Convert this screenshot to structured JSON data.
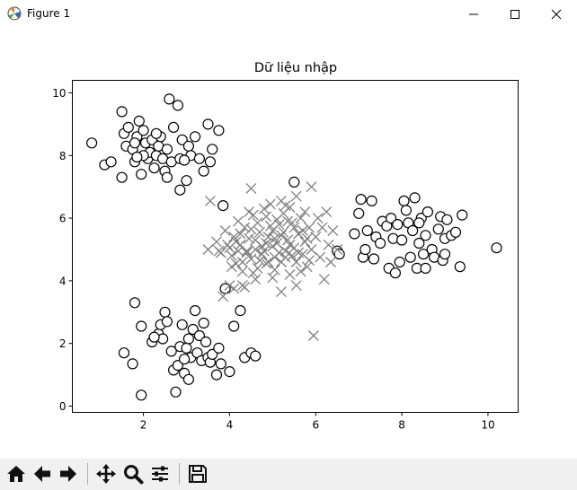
{
  "window": {
    "title": "Figure 1",
    "buttons": [
      "minimize",
      "maximize",
      "close"
    ]
  },
  "toolbar": {
    "buttons": [
      {
        "name": "home-icon",
        "tooltip": "Reset original view"
      },
      {
        "name": "back-icon",
        "tooltip": "Back"
      },
      {
        "name": "forward-icon",
        "tooltip": "Forward"
      },
      {
        "name": "pan-icon",
        "tooltip": "Pan"
      },
      {
        "name": "zoom-icon",
        "tooltip": "Zoom"
      },
      {
        "name": "subplots-icon",
        "tooltip": "Configure subplots"
      },
      {
        "name": "save-icon",
        "tooltip": "Save"
      }
    ]
  },
  "chart_data": {
    "type": "scatter",
    "title": "Dữ liệu nhập",
    "xlabel": "",
    "ylabel": "",
    "xlim": [
      0.35,
      10.7
    ],
    "ylim": [
      -0.2,
      10.4
    ],
    "xticks": [
      2,
      4,
      6,
      8,
      10
    ],
    "yticks": [
      0,
      2,
      4,
      6,
      8,
      10
    ],
    "grid": false,
    "colors": {
      "circle_fill": "#ffffff",
      "circle_edge": "#000000",
      "cross": "#808080"
    },
    "series": [
      {
        "marker": "circle",
        "points": [
          [
            0.8,
            8.4
          ],
          [
            1.1,
            7.7
          ],
          [
            1.25,
            7.8
          ],
          [
            1.5,
            9.4
          ],
          [
            1.5,
            7.3
          ],
          [
            1.55,
            8.7
          ],
          [
            1.6,
            8.3
          ],
          [
            1.65,
            8.9
          ],
          [
            1.75,
            8.2
          ],
          [
            1.8,
            7.8
          ],
          [
            1.85,
            8.6
          ],
          [
            1.9,
            9.1
          ],
          [
            1.95,
            7.4
          ],
          [
            2.0,
            8.8
          ],
          [
            2.05,
            8.4
          ],
          [
            2.1,
            7.9
          ],
          [
            2.15,
            8.1
          ],
          [
            2.2,
            8.5
          ],
          [
            2.25,
            7.6
          ],
          [
            2.3,
            8.0
          ],
          [
            2.35,
            8.3
          ],
          [
            2.4,
            8.6
          ],
          [
            2.45,
            7.9
          ],
          [
            2.5,
            7.5
          ],
          [
            2.55,
            8.2
          ],
          [
            2.6,
            9.8
          ],
          [
            2.65,
            7.8
          ],
          [
            2.7,
            8.9
          ],
          [
            2.8,
            9.6
          ],
          [
            2.85,
            7.9
          ],
          [
            2.9,
            8.5
          ],
          [
            3.0,
            7.2
          ],
          [
            3.05,
            8.3
          ],
          [
            3.1,
            8.0
          ],
          [
            3.2,
            8.6
          ],
          [
            3.3,
            7.9
          ],
          [
            3.4,
            7.5
          ],
          [
            3.5,
            9.0
          ],
          [
            3.55,
            7.8
          ],
          [
            3.6,
            8.2
          ],
          [
            3.75,
            8.8
          ],
          [
            2.0,
            8.0
          ],
          [
            2.3,
            8.7
          ],
          [
            2.85,
            6.9
          ],
          [
            1.8,
            8.4
          ],
          [
            2.55,
            7.3
          ],
          [
            2.95,
            7.85
          ],
          [
            1.85,
            7.95
          ],
          [
            1.55,
            1.7
          ],
          [
            1.75,
            1.35
          ],
          [
            1.8,
            3.3
          ],
          [
            1.95,
            2.55
          ],
          [
            1.95,
            0.35
          ],
          [
            2.2,
            2.05
          ],
          [
            2.35,
            2.3
          ],
          [
            2.4,
            2.6
          ],
          [
            2.45,
            2.15
          ],
          [
            2.5,
            3.0
          ],
          [
            2.55,
            2.7
          ],
          [
            2.65,
            1.75
          ],
          [
            2.7,
            1.15
          ],
          [
            2.75,
            0.45
          ],
          [
            2.8,
            1.3
          ],
          [
            2.85,
            1.9
          ],
          [
            2.9,
            2.6
          ],
          [
            2.95,
            1.05
          ],
          [
            3.0,
            1.85
          ],
          [
            3.05,
            2.15
          ],
          [
            3.1,
            1.55
          ],
          [
            3.15,
            2.45
          ],
          [
            3.2,
            3.05
          ],
          [
            3.25,
            1.7
          ],
          [
            3.3,
            2.25
          ],
          [
            3.35,
            1.45
          ],
          [
            3.4,
            2.65
          ],
          [
            3.45,
            2.05
          ],
          [
            3.5,
            1.55
          ],
          [
            3.55,
            1.4
          ],
          [
            3.6,
            1.65
          ],
          [
            3.7,
            1.0
          ],
          [
            3.75,
            1.85
          ],
          [
            3.8,
            1.35
          ],
          [
            3.9,
            3.75
          ],
          [
            4.0,
            1.1
          ],
          [
            4.1,
            2.55
          ],
          [
            4.25,
            3.05
          ],
          [
            4.35,
            1.55
          ],
          [
            4.5,
            1.7
          ],
          [
            4.6,
            1.6
          ],
          [
            2.95,
            1.5
          ],
          [
            3.05,
            0.85
          ],
          [
            2.25,
            2.2
          ],
          [
            3.85,
            6.4
          ],
          [
            5.5,
            7.15
          ],
          [
            6.5,
            4.95
          ],
          [
            6.55,
            4.85
          ],
          [
            6.9,
            5.5
          ],
          [
            7.0,
            6.15
          ],
          [
            7.05,
            6.6
          ],
          [
            7.1,
            4.75
          ],
          [
            7.15,
            5.0
          ],
          [
            7.2,
            5.6
          ],
          [
            7.3,
            6.55
          ],
          [
            7.35,
            4.7
          ],
          [
            7.4,
            5.4
          ],
          [
            7.5,
            5.2
          ],
          [
            7.55,
            5.9
          ],
          [
            7.65,
            5.75
          ],
          [
            7.7,
            4.4
          ],
          [
            7.75,
            6.0
          ],
          [
            7.8,
            5.35
          ],
          [
            7.85,
            4.25
          ],
          [
            7.9,
            5.8
          ],
          [
            7.95,
            4.6
          ],
          [
            8.0,
            5.3
          ],
          [
            8.05,
            6.55
          ],
          [
            8.1,
            6.25
          ],
          [
            8.15,
            5.85
          ],
          [
            8.2,
            4.75
          ],
          [
            8.25,
            5.6
          ],
          [
            8.3,
            6.65
          ],
          [
            8.35,
            4.4
          ],
          [
            8.4,
            5.2
          ],
          [
            8.45,
            6.0
          ],
          [
            8.5,
            4.85
          ],
          [
            8.55,
            5.45
          ],
          [
            8.6,
            6.2
          ],
          [
            8.7,
            5.0
          ],
          [
            8.75,
            4.75
          ],
          [
            8.85,
            5.65
          ],
          [
            8.9,
            6.05
          ],
          [
            8.95,
            4.65
          ],
          [
            9.0,
            5.35
          ],
          [
            9.05,
            5.95
          ],
          [
            9.15,
            5.45
          ],
          [
            9.25,
            5.55
          ],
          [
            9.35,
            4.45
          ],
          [
            9.4,
            6.1
          ],
          [
            10.2,
            5.05
          ],
          [
            8.55,
            4.4
          ],
          [
            9.0,
            4.85
          ],
          [
            8.4,
            5.85
          ]
        ]
      },
      {
        "marker": "x",
        "points": [
          [
            3.55,
            6.55
          ],
          [
            3.85,
            3.5
          ],
          [
            4.0,
            3.85
          ],
          [
            4.1,
            3.75
          ],
          [
            4.3,
            3.85
          ],
          [
            4.35,
            3.8
          ],
          [
            4.5,
            6.95
          ],
          [
            5.95,
            2.25
          ],
          [
            6.05,
            6.0
          ],
          [
            6.25,
            6.2
          ],
          [
            6.2,
            4.05
          ],
          [
            5.2,
            6.55
          ],
          [
            5.55,
            6.7
          ],
          [
            5.9,
            7.0
          ],
          [
            5.2,
            3.65
          ],
          [
            5.3,
            6.4
          ],
          [
            3.5,
            5.0
          ],
          [
            3.7,
            5.25
          ],
          [
            3.8,
            4.9
          ],
          [
            3.9,
            5.6
          ],
          [
            4.0,
            5.05
          ],
          [
            4.05,
            4.8
          ],
          [
            4.1,
            5.4
          ],
          [
            4.15,
            4.55
          ],
          [
            4.2,
            5.9
          ],
          [
            4.25,
            5.15
          ],
          [
            4.3,
            4.3
          ],
          [
            4.35,
            5.7
          ],
          [
            4.4,
            4.95
          ],
          [
            4.45,
            5.35
          ],
          [
            4.5,
            4.7
          ],
          [
            4.55,
            6.1
          ],
          [
            4.6,
            5.0
          ],
          [
            4.65,
            4.4
          ],
          [
            4.7,
            5.55
          ],
          [
            4.75,
            4.85
          ],
          [
            4.8,
            6.3
          ],
          [
            4.85,
            5.2
          ],
          [
            4.9,
            4.6
          ],
          [
            4.95,
            5.75
          ],
          [
            5.0,
            5.1
          ],
          [
            5.05,
            4.35
          ],
          [
            5.1,
            5.95
          ],
          [
            5.15,
            4.9
          ],
          [
            5.2,
            5.45
          ],
          [
            5.25,
            6.15
          ],
          [
            5.3,
            4.75
          ],
          [
            5.35,
            5.3
          ],
          [
            5.4,
            4.2
          ],
          [
            5.45,
            5.85
          ],
          [
            5.5,
            5.05
          ],
          [
            5.55,
            4.6
          ],
          [
            5.6,
            5.5
          ],
          [
            5.65,
            6.0
          ],
          [
            5.7,
            4.85
          ],
          [
            5.75,
            5.25
          ],
          [
            5.8,
            4.45
          ],
          [
            5.85,
            5.7
          ],
          [
            5.9,
            5.0
          ],
          [
            6.0,
            5.4
          ],
          [
            6.1,
            4.75
          ],
          [
            6.3,
            5.15
          ],
          [
            6.4,
            5.6
          ],
          [
            6.5,
            5.0
          ],
          [
            4.4,
            4.9
          ],
          [
            4.6,
            5.3
          ],
          [
            4.8,
            4.95
          ],
          [
            5.0,
            5.6
          ],
          [
            5.2,
            4.6
          ],
          [
            5.4,
            5.15
          ],
          [
            5.6,
            4.9
          ],
          [
            5.8,
            5.35
          ],
          [
            4.7,
            4.65
          ],
          [
            4.9,
            5.4
          ],
          [
            5.1,
            5.2
          ],
          [
            5.3,
            4.95
          ],
          [
            4.5,
            5.65
          ],
          [
            5.5,
            5.7
          ],
          [
            4.3,
            4.6
          ],
          [
            4.65,
            5.85
          ],
          [
            5.05,
            4.75
          ],
          [
            5.25,
            5.55
          ],
          [
            5.45,
            4.8
          ],
          [
            4.85,
            4.55
          ],
          [
            4.15,
            5.25
          ],
          [
            5.7,
            5.6
          ],
          [
            4.55,
            4.25
          ],
          [
            5.15,
            5.8
          ],
          [
            4.75,
            5.1
          ],
          [
            5.35,
            5.9
          ],
          [
            3.95,
            5.15
          ],
          [
            4.95,
            6.45
          ],
          [
            5.65,
            4.3
          ],
          [
            6.15,
            5.7
          ],
          [
            4.25,
            5.5
          ],
          [
            5.0,
            4.1
          ],
          [
            5.75,
            6.2
          ],
          [
            4.45,
            6.2
          ],
          [
            5.85,
            4.65
          ],
          [
            4.05,
            4.45
          ],
          [
            5.4,
            6.35
          ],
          [
            4.6,
            4.05
          ],
          [
            3.75,
            4.95
          ],
          [
            6.35,
            4.6
          ],
          [
            5.55,
            3.85
          ],
          [
            4.85,
            6.05
          ],
          [
            4.2,
            4.95
          ],
          [
            5.05,
            5.35
          ]
        ]
      }
    ]
  }
}
